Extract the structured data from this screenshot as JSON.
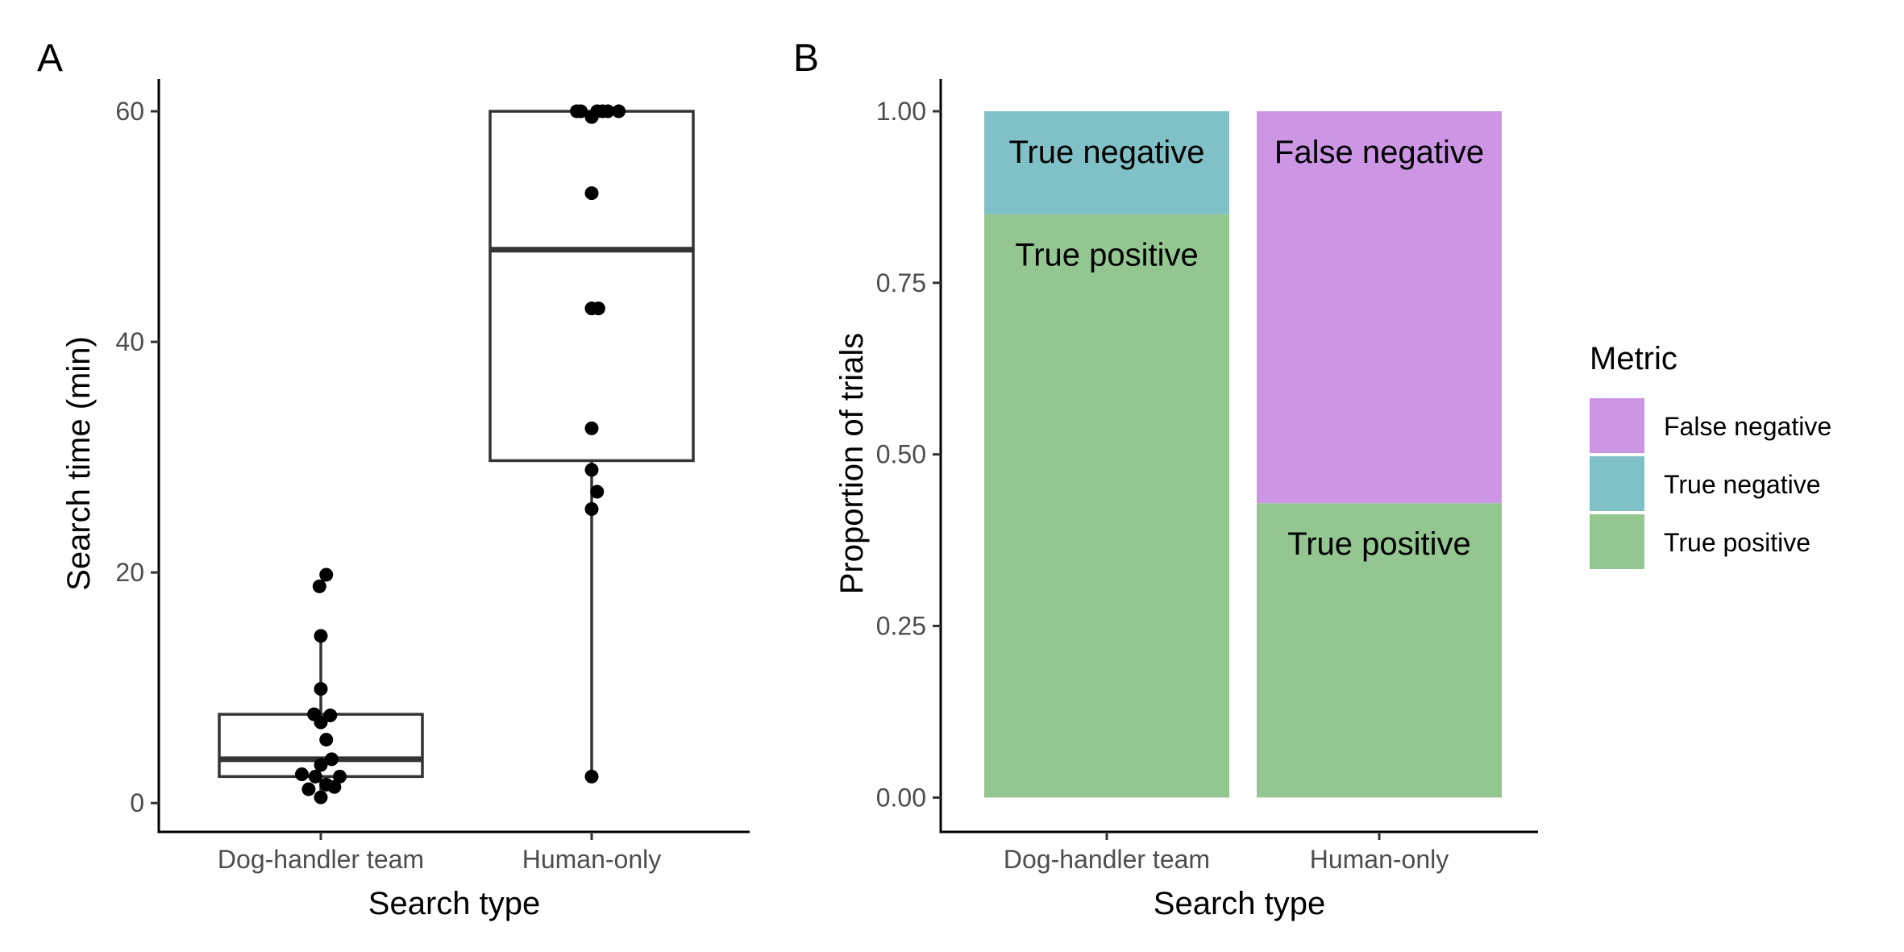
{
  "panels": {
    "a": {
      "letter": "A"
    },
    "b": {
      "letter": "B"
    }
  },
  "chart_data": [
    {
      "type": "box",
      "panel": "A",
      "title": "",
      "xlabel": "Search type",
      "ylabel": "Search time (min)",
      "ylim": [
        -2.5,
        62.8
      ],
      "yticks": [
        0,
        20,
        40,
        60
      ],
      "categories": [
        "Dog-handler team",
        "Human-only"
      ],
      "grid": false,
      "boxes": [
        {
          "category": "Dog-handler team",
          "q1": 2.3,
          "median": 3.8,
          "q3": 7.7,
          "whisker_low": 0.5,
          "whisker_high": 14.5
        },
        {
          "category": "Human-only",
          "q1": 29.7,
          "median": 48.0,
          "q3": 60.0,
          "whisker_low": 2.3,
          "whisker_high": 60.0
        }
      ],
      "points": [
        {
          "category": "Dog-handler team",
          "values": [
            19.8,
            18.8,
            14.5,
            9.9,
            7.7,
            7.6,
            7.0,
            5.5,
            3.8,
            3.3,
            2.5,
            2.3,
            2.3,
            1.6,
            1.4,
            1.2,
            0.5
          ],
          "jitter": [
            0.04,
            -0.01,
            0.0,
            0.0,
            -0.05,
            0.07,
            0.0,
            0.04,
            0.08,
            0.0,
            -0.14,
            0.14,
            -0.04,
            0.04,
            0.1,
            -0.09,
            0.0
          ]
        },
        {
          "category": "Human-only",
          "values": [
            60.0,
            60.0,
            60.0,
            60.0,
            60.0,
            60.0,
            59.5,
            52.9,
            42.9,
            42.9,
            32.5,
            28.9,
            27.0,
            25.5,
            2.3
          ],
          "jitter": [
            -0.11,
            -0.08,
            0.04,
            0.08,
            0.12,
            0.2,
            0.0,
            0.0,
            0.0,
            0.05,
            0.0,
            0.0,
            0.04,
            0.0,
            0.0
          ]
        }
      ]
    },
    {
      "type": "bar",
      "stacked": true,
      "panel": "B",
      "title": "",
      "xlabel": "Search type",
      "ylabel": "Proportion of trials",
      "ylim": [
        -0.05,
        1.047
      ],
      "yticks": [
        "0.00",
        "0.25",
        "0.50",
        "0.75",
        "1.00"
      ],
      "categories": [
        "Dog-handler team",
        "Human-only"
      ],
      "grid": false,
      "series": [
        {
          "name": "True positive",
          "values": [
            0.85,
            0.429
          ],
          "color": "#93c690"
        },
        {
          "name": "True negative",
          "values": [
            0.15,
            0.0
          ],
          "color": "#80c1c7"
        },
        {
          "name": "False negative",
          "values": [
            0.0,
            0.571
          ],
          "color": "#cc96e5"
        }
      ],
      "bar_labels": [
        {
          "category": "Dog-handler team",
          "series": "True negative",
          "text": "True negative"
        },
        {
          "category": "Dog-handler team",
          "series": "True positive",
          "text": "True positive"
        },
        {
          "category": "Human-only",
          "series": "False negative",
          "text": "False negative"
        },
        {
          "category": "Human-only",
          "series": "True positive",
          "text": "True positive"
        }
      ],
      "legend": {
        "title": "Metric",
        "position": "right",
        "entries": [
          {
            "label": "False negative",
            "color": "#cc96e5"
          },
          {
            "label": "True negative",
            "color": "#80c1c7"
          },
          {
            "label": "True positive",
            "color": "#93c690"
          }
        ]
      }
    }
  ]
}
